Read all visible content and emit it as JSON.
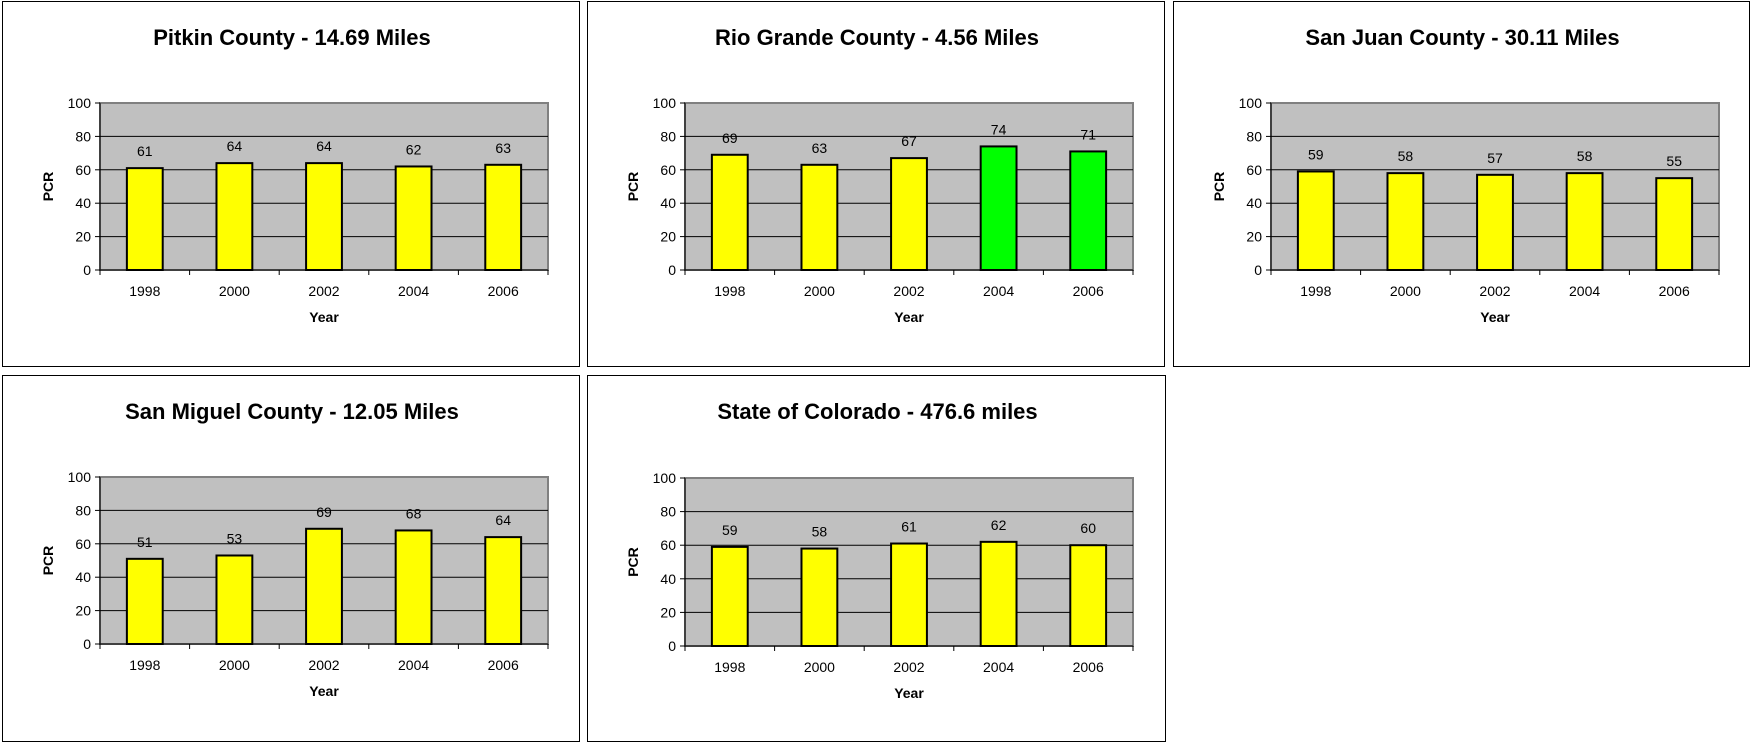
{
  "chart_data": [
    {
      "type": "bar",
      "title": "Pitkin County - 14.69 Miles",
      "xlabel": "Year",
      "ylabel": "PCR",
      "ylim": [
        0,
        100
      ],
      "yticks": [
        "0",
        "20",
        "40",
        "60",
        "80",
        "100"
      ],
      "categories": [
        "1998",
        "2000",
        "2002",
        "2004",
        "2006"
      ],
      "values": [
        61,
        64,
        64,
        62,
        63
      ],
      "bar_colors": [
        "#ffff00",
        "#ffff00",
        "#ffff00",
        "#ffff00",
        "#ffff00"
      ],
      "plot_bg": "#c0c0c0",
      "grid": true
    },
    {
      "type": "bar",
      "title": "Rio Grande County - 4.56 Miles",
      "xlabel": "Year",
      "ylabel": "PCR",
      "ylim": [
        0,
        100
      ],
      "yticks": [
        "0",
        "20",
        "40",
        "60",
        "80",
        "100"
      ],
      "categories": [
        "1998",
        "2000",
        "2002",
        "2004",
        "2006"
      ],
      "values": [
        69,
        63,
        67,
        74,
        71
      ],
      "bar_colors": [
        "#ffff00",
        "#ffff00",
        "#ffff00",
        "#00ff00",
        "#00ff00"
      ],
      "plot_bg": "#c0c0c0",
      "grid": true
    },
    {
      "type": "bar",
      "title": "San Juan County - 30.11 Miles",
      "xlabel": "Year",
      "ylabel": "PCR",
      "ylim": [
        0,
        100
      ],
      "yticks": [
        "0",
        "20",
        "40",
        "60",
        "80",
        "100"
      ],
      "categories": [
        "1998",
        "2000",
        "2002",
        "2004",
        "2006"
      ],
      "values": [
        59,
        58,
        57,
        58,
        55
      ],
      "bar_colors": [
        "#ffff00",
        "#ffff00",
        "#ffff00",
        "#ffff00",
        "#ffff00"
      ],
      "plot_bg": "#c0c0c0",
      "grid": true
    },
    {
      "type": "bar",
      "title": "San Miguel County - 12.05 Miles",
      "xlabel": "Year",
      "ylabel": "PCR",
      "ylim": [
        0,
        100
      ],
      "yticks": [
        "0",
        "20",
        "40",
        "60",
        "80",
        "100"
      ],
      "categories": [
        "1998",
        "2000",
        "2002",
        "2004",
        "2006"
      ],
      "values": [
        51,
        53,
        69,
        68,
        64
      ],
      "bar_colors": [
        "#ffff00",
        "#ffff00",
        "#ffff00",
        "#ffff00",
        "#ffff00"
      ],
      "plot_bg": "#c0c0c0",
      "grid": true
    },
    {
      "type": "bar",
      "title": "State of Colorado - 476.6 miles",
      "xlabel": "Year",
      "ylabel": "PCR",
      "ylim": [
        0,
        100
      ],
      "yticks": [
        "0",
        "20",
        "40",
        "60",
        "80",
        "100"
      ],
      "categories": [
        "1998",
        "2000",
        "2002",
        "2004",
        "2006"
      ],
      "values": [
        59,
        58,
        61,
        62,
        60
      ],
      "bar_colors": [
        "#ffff00",
        "#ffff00",
        "#ffff00",
        "#ffff00",
        "#ffff00"
      ],
      "plot_bg": "#c0c0c0",
      "grid": true
    }
  ]
}
